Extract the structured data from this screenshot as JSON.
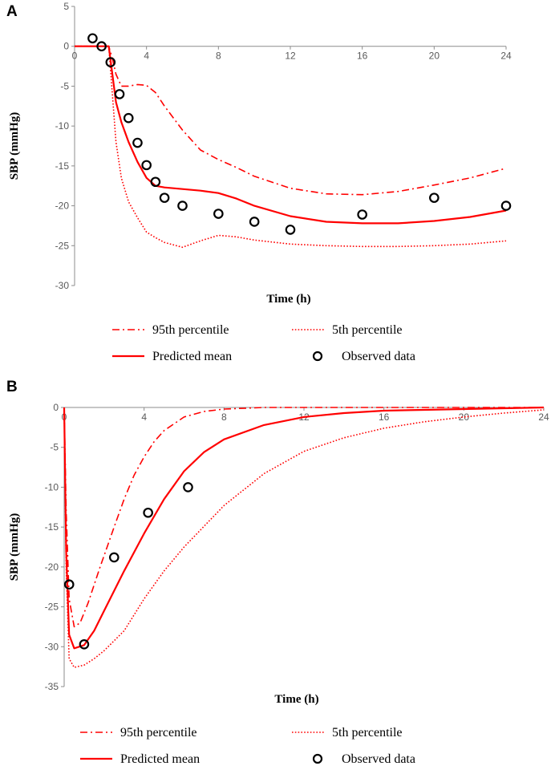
{
  "panels": [
    {
      "label": "A",
      "chart_data": {
        "type": "line",
        "title": "",
        "xlabel": "Time (h)",
        "ylabel": "SBP (mmHg)",
        "xlim": [
          0,
          24
        ],
        "ylim": [
          -30,
          5
        ],
        "xticks": [
          0,
          4,
          8,
          12,
          16,
          20,
          24
        ],
        "yticks": [
          5,
          0,
          -5,
          -10,
          -15,
          -20,
          -25,
          -30
        ],
        "grid": false,
        "legend_position": "bottom",
        "series": [
          {
            "name": "95th percentile",
            "style": "dashdot",
            "color": "#ff0000",
            "x": [
              0,
              1,
              1.9,
              2.1,
              2.3,
              2.6,
              3,
              3.5,
              4,
              4.5,
              5,
              6,
              7,
              8,
              9,
              10,
              12,
              14,
              16,
              18,
              20,
              22,
              24
            ],
            "y": [
              0,
              0,
              0,
              -1.5,
              -3.5,
              -5,
              -5,
              -4.8,
              -4.9,
              -5.8,
              -7.5,
              -10.5,
              -13,
              -14.2,
              -15.2,
              -16.3,
              -17.8,
              -18.5,
              -18.6,
              -18.2,
              -17.4,
              -16.5,
              -15.3
            ]
          },
          {
            "name": "5th percentile",
            "style": "dotted",
            "color": "#ff0000",
            "x": [
              0,
              1,
              1.9,
              2.1,
              2.3,
              2.6,
              3,
              3.5,
              4,
              4.5,
              5,
              6,
              7,
              8,
              9,
              10,
              12,
              14,
              16,
              18,
              20,
              22,
              24
            ],
            "y": [
              0,
              0,
              0,
              -6,
              -12,
              -16.5,
              -19.5,
              -21.5,
              -23.3,
              -24,
              -24.6,
              -25.2,
              -24.4,
              -23.7,
              -23.9,
              -24.3,
              -24.8,
              -25,
              -25.1,
              -25.1,
              -25,
              -24.8,
              -24.4
            ]
          },
          {
            "name": "Predicted mean",
            "style": "solid",
            "color": "#ff0000",
            "x": [
              0,
              1,
              1.9,
              2.1,
              2.3,
              2.6,
              3,
              3.5,
              4,
              4.5,
              5,
              6,
              7,
              8,
              9,
              10,
              12,
              14,
              16,
              18,
              20,
              22,
              24
            ],
            "y": [
              0,
              0,
              0,
              -3.5,
              -7,
              -9.5,
              -12,
              -14.5,
              -16.5,
              -17.5,
              -17.7,
              -17.9,
              -18.1,
              -18.4,
              -19.1,
              -20,
              -21.3,
              -22,
              -22.2,
              -22.2,
              -21.9,
              -21.4,
              -20.6
            ]
          },
          {
            "name": "Observed data",
            "style": "marker-circle",
            "color": "#000000",
            "x": [
              1,
              1.5,
              2,
              2.5,
              3,
              3.5,
              4,
              4.5,
              5,
              6,
              8,
              10,
              12,
              16,
              20,
              24
            ],
            "y": [
              1,
              0,
              -2,
              -6,
              -9,
              -12.1,
              -14.9,
              -17,
              -19,
              -20,
              -21,
              -22,
              -23,
              -21.1,
              -19,
              -20
            ]
          }
        ]
      }
    },
    {
      "label": "B",
      "chart_data": {
        "type": "line",
        "title": "",
        "xlabel": "Time (h)",
        "ylabel": "SBP (mmHg)",
        "xlim": [
          0,
          24
        ],
        "ylim": [
          -35,
          0
        ],
        "xticks": [
          0,
          4,
          8,
          12,
          16,
          20,
          24
        ],
        "yticks": [
          0,
          -5,
          -10,
          -15,
          -20,
          -25,
          -30,
          -35
        ],
        "grid": false,
        "legend_position": "bottom",
        "series": [
          {
            "name": "95th percentile",
            "style": "dashdot",
            "color": "#ff0000",
            "x": [
              0,
              0.1,
              0.25,
              0.5,
              0.8,
              1.2,
              1.8,
              2.5,
              3,
              3.5,
              4,
              4.5,
              5,
              6,
              7,
              8,
              10,
              12,
              16,
              20,
              24
            ],
            "y": [
              0,
              -13,
              -24,
              -27.5,
              -27,
              -24.5,
              -20,
              -15,
              -11.5,
              -8.5,
              -6.2,
              -4.3,
              -2.9,
              -1.2,
              -0.5,
              -0.2,
              0,
              0,
              0,
              0,
              0
            ]
          },
          {
            "name": "5th percentile",
            "style": "dotted",
            "color": "#ff0000",
            "x": [
              0,
              0.1,
              0.25,
              0.5,
              1,
              1.5,
              2,
              3,
              4,
              5,
              6,
              8,
              10,
              12,
              14,
              16,
              18,
              20,
              22,
              24
            ],
            "y": [
              0,
              -20,
              -31.5,
              -32.6,
              -32.3,
              -31.5,
              -30.5,
              -28,
              -24,
              -20.5,
              -17.5,
              -12.3,
              -8.3,
              -5.5,
              -3.8,
              -2.6,
              -1.8,
              -1.2,
              -0.7,
              -0.3
            ]
          },
          {
            "name": "Predicted mean",
            "style": "solid",
            "color": "#ff0000",
            "x": [
              0,
              0.1,
              0.25,
              0.5,
              1,
              1.5,
              2,
              3,
              4,
              5,
              6,
              7,
              8,
              10,
              12,
              14,
              16,
              18,
              20,
              22,
              24
            ],
            "y": [
              0,
              -18,
              -28.5,
              -30.2,
              -29.8,
              -28,
              -25.5,
              -20.5,
              -15.8,
              -11.5,
              -8,
              -5.6,
              -4,
              -2.2,
              -1.2,
              -0.7,
              -0.4,
              -0.3,
              -0.2,
              -0.1,
              0
            ]
          },
          {
            "name": "Observed data",
            "style": "marker-circle",
            "color": "#000000",
            "x": [
              0.25,
              1,
              2.5,
              4.2,
              6.2
            ],
            "y": [
              -22.2,
              -29.7,
              -18.8,
              -13.2,
              -10
            ]
          }
        ]
      }
    }
  ]
}
